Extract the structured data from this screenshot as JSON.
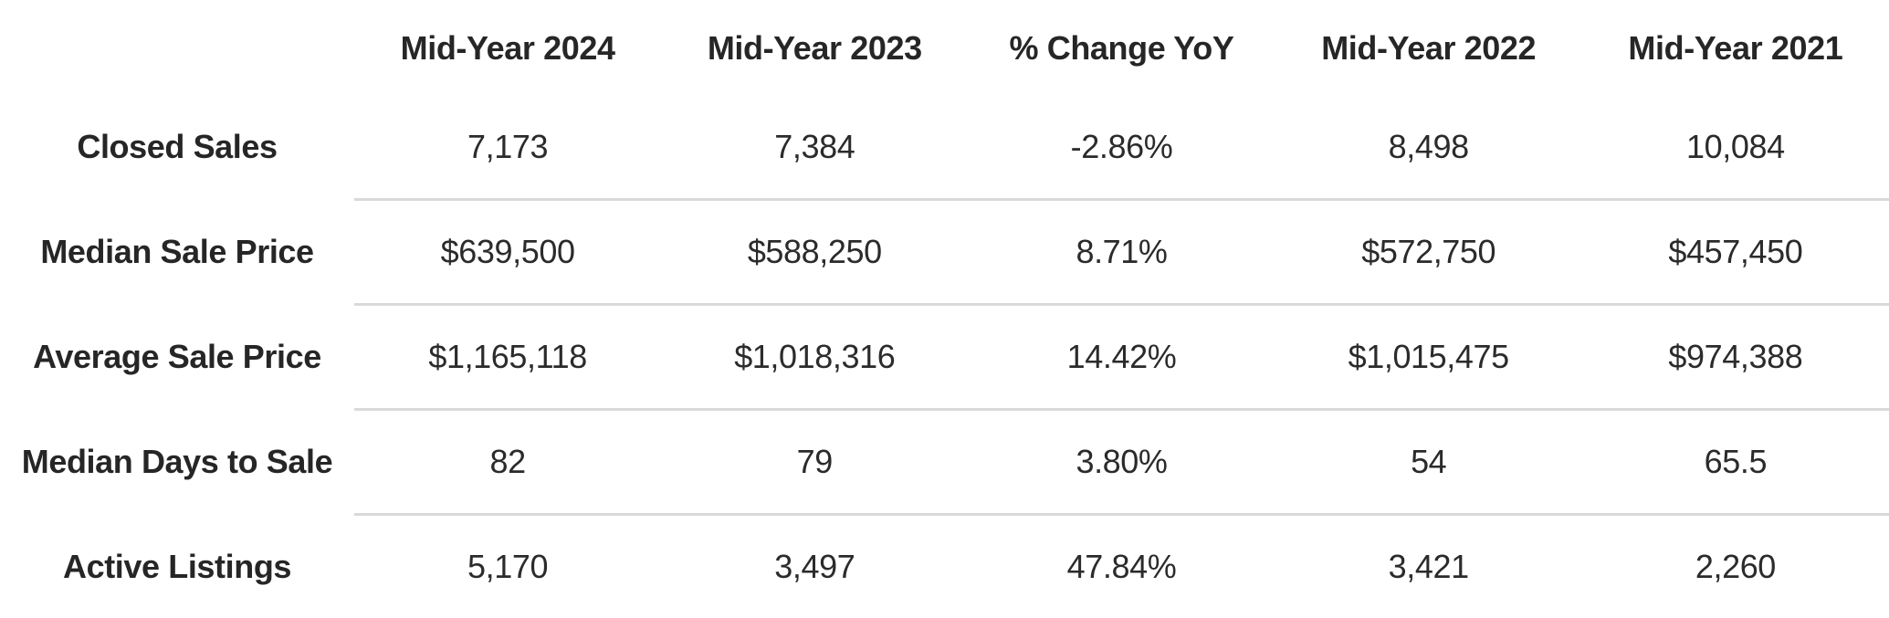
{
  "chart_data": {
    "type": "table",
    "title": "",
    "columns": [
      "Mid-Year 2024",
      "Mid-Year 2023",
      "% Change YoY",
      "Mid-Year 2022",
      "Mid-Year 2021"
    ],
    "rows": [
      {
        "label": "Closed Sales",
        "values": [
          "7,173",
          "7,384",
          "-2.86%",
          "8,498",
          "10,084"
        ]
      },
      {
        "label": "Median Sale Price",
        "values": [
          "$639,500",
          "$588,250",
          "8.71%",
          "$572,750",
          "$457,450"
        ]
      },
      {
        "label": "Average Sale Price",
        "values": [
          "$1,165,118",
          "$1,018,316",
          "14.42%",
          "$1,015,475",
          "$974,388"
        ]
      },
      {
        "label": "Median Days to Sale",
        "values": [
          "82",
          "79",
          "3.80%",
          "54",
          "65.5"
        ]
      },
      {
        "label": "Active Listings",
        "values": [
          "5,170",
          "3,497",
          "47.84%",
          "3,421",
          "2,260"
        ]
      }
    ],
    "layout": {
      "header_style": "bold",
      "label_column_style": "bold-centered",
      "value_alignment": "center",
      "grid": "horizontal-dividers-between-rows-only",
      "divider_starts_after_label_column": true
    }
  },
  "colors": {
    "text": "#2b2b2b",
    "header_text": "#262626",
    "divider": "#d9d9d9",
    "background": "#ffffff"
  }
}
